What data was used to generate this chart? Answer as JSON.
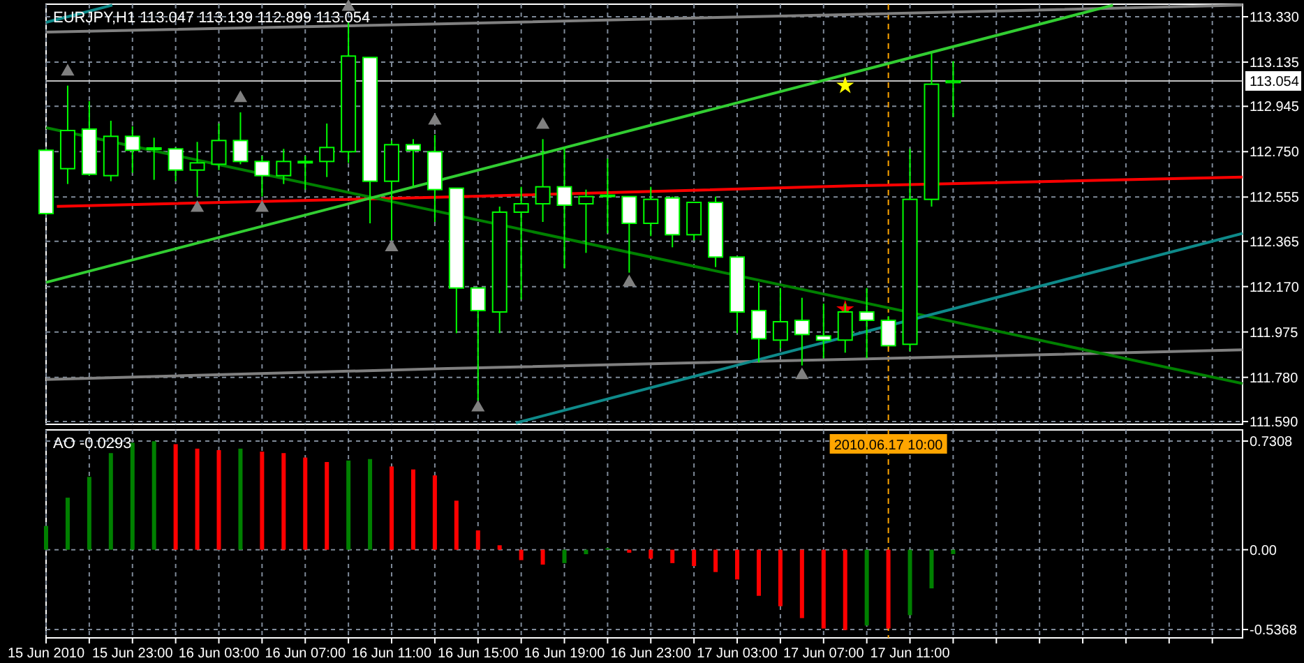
{
  "chart_data": [
    {
      "type": "candlestick",
      "title": "EURJPY,H1 113.047 113.139 112.899 113.054",
      "color": "#00ff00",
      "x": [
        "2010-06-15T19:00",
        "2010-06-15T20:00",
        "2010-06-15T21:00",
        "2010-06-15T22:00",
        "2010-06-15T23:00",
        "2010-06-16T00:00",
        "2010-06-16T01:00",
        "2010-06-16T02:00",
        "2010-06-16T03:00",
        "2010-06-16T04:00",
        "2010-06-16T05:00",
        "2010-06-16T06:00",
        "2010-06-16T07:00",
        "2010-06-16T08:00",
        "2010-06-16T09:00",
        "2010-06-16T10:00",
        "2010-06-16T11:00",
        "2010-06-16T12:00",
        "2010-06-16T13:00",
        "2010-06-16T14:00",
        "2010-06-16T15:00",
        "2010-06-16T16:00",
        "2010-06-16T17:00",
        "2010-06-16T18:00",
        "2010-06-16T19:00",
        "2010-06-16T20:00",
        "2010-06-16T21:00",
        "2010-06-16T22:00",
        "2010-06-16T23:00",
        "2010-06-17T00:00",
        "2010-06-17T01:00",
        "2010-06-17T02:00",
        "2010-06-17T03:00",
        "2010-06-17T04:00",
        "2010-06-17T05:00",
        "2010-06-17T06:00",
        "2010-06-17T07:00",
        "2010-06-17T08:00",
        "2010-06-17T09:00",
        "2010-06-17T10:00",
        "2010-06-17T11:00",
        "2010-06-17T12:00",
        "2010-06-17T13:00"
      ],
      "ohlc": [
        [
          112.756,
          112.762,
          112.478,
          112.484
        ],
        [
          112.677,
          113.034,
          112.611,
          112.841
        ],
        [
          112.847,
          112.967,
          112.647,
          112.653
        ],
        [
          112.647,
          112.883,
          112.623,
          112.816
        ],
        [
          112.816,
          112.859,
          112.659,
          112.756
        ],
        [
          112.766,
          112.81,
          112.629,
          112.762
        ],
        [
          112.762,
          112.768,
          112.623,
          112.671
        ],
        [
          112.671,
          112.792,
          112.557,
          112.702
        ],
        [
          112.696,
          112.871,
          112.671,
          112.798
        ],
        [
          112.798,
          112.919,
          112.696,
          112.708
        ],
        [
          112.708,
          112.732,
          112.557,
          112.647
        ],
        [
          112.647,
          112.762,
          112.611,
          112.708
        ],
        [
          112.708,
          112.732,
          112.587,
          112.708
        ],
        [
          112.708,
          112.871,
          112.641,
          112.768
        ],
        [
          112.75,
          113.306,
          112.702,
          113.161
        ],
        [
          113.155,
          113.155,
          112.442,
          112.623
        ],
        [
          112.623,
          112.798,
          112.369,
          112.78
        ],
        [
          112.78,
          112.804,
          112.599,
          112.756
        ],
        [
          112.75,
          112.822,
          112.448,
          112.587
        ],
        [
          112.593,
          112.593,
          111.97,
          112.164
        ],
        [
          112.164,
          112.164,
          111.68,
          112.067
        ],
        [
          112.061,
          112.514,
          111.97,
          112.49
        ],
        [
          112.49,
          112.599,
          112.115,
          112.526
        ],
        [
          112.526,
          112.804,
          112.448,
          112.599
        ],
        [
          112.599,
          112.768,
          112.248,
          112.52
        ],
        [
          112.526,
          112.587,
          112.315,
          112.557
        ],
        [
          112.56,
          112.72,
          112.399,
          112.563
        ],
        [
          112.557,
          112.557,
          112.23,
          112.442
        ],
        [
          112.442,
          112.599,
          112.387,
          112.545
        ],
        [
          112.551,
          112.557,
          112.339,
          112.393
        ],
        [
          112.393,
          112.532,
          112.369,
          112.532
        ],
        [
          112.532,
          112.557,
          112.254,
          112.297
        ],
        [
          112.297,
          112.297,
          111.97,
          112.061
        ],
        [
          112.067,
          112.188,
          111.844,
          111.946
        ],
        [
          111.94,
          112.164,
          111.904,
          112.019
        ],
        [
          112.025,
          112.122,
          111.831,
          111.964
        ],
        [
          111.958,
          112.097,
          111.862,
          111.94
        ],
        [
          111.94,
          112.097,
          111.886,
          112.061
        ],
        [
          112.061,
          112.164,
          111.862,
          112.025
        ],
        [
          112.025,
          112.043,
          111.916,
          111.916
        ],
        [
          111.922,
          112.762,
          111.892,
          112.545
        ],
        [
          112.545,
          113.173,
          112.514,
          113.04
        ],
        [
          113.047,
          113.139,
          112.899,
          113.054
        ]
      ],
      "series": [
        {
          "type": "line",
          "color": "#808080",
          "x": [
            "2010-06-15T19:00",
            "2010-06-16T13:36",
            "2010-06-17T08:18",
            "2010-06-18T02:24"
          ],
          "values": [
            113.264,
            113.3,
            113.34,
            113.38
          ]
        },
        {
          "type": "line",
          "color": "#808080",
          "x": [
            "2010-06-15T19:00",
            "2010-06-16T13:36",
            "2010-06-17T08:18",
            "2010-06-18T02:24"
          ],
          "values": [
            111.771,
            111.818,
            111.858,
            111.898
          ]
        },
        {
          "type": "line",
          "color": "#ff0000",
          "x": [
            "2010-06-15T19:30",
            "2010-06-16T13:36",
            "2010-06-17T08:18",
            "2010-06-18T02:24"
          ],
          "values": [
            112.515,
            112.555,
            112.603,
            112.641
          ]
        },
        {
          "type": "line",
          "color": "#008000",
          "x": [
            "2010-06-15T19:00",
            "2010-06-18T02:24"
          ],
          "values": [
            112.853,
            111.753
          ]
        },
        {
          "type": "line",
          "color": "#32cd32",
          "x": [
            "2010-06-15T19:00",
            "2010-06-17T20:24"
          ],
          "values": [
            112.188,
            113.38
          ]
        },
        {
          "type": "line",
          "color": "#0e8a8a",
          "x": [
            "2010-06-16T16:45",
            "2010-06-18T02:24"
          ],
          "values": [
            111.584,
            112.399
          ]
        },
        {
          "type": "line",
          "color": "#0e8a8a",
          "x": [
            "2010-06-15T19:00",
            "2010-06-15T22:04"
          ],
          "values": [
            113.306,
            113.38
          ]
        },
        {
          "type": "scatter",
          "color": "#808080",
          "marker": "triangle",
          "x": [
            "2010-06-15T20:00",
            "2010-06-16T04:00",
            "2010-06-16T09:00",
            "2010-06-16T13:00",
            "2010-06-16T18:00"
          ],
          "values": [
            113.094,
            112.98,
            113.372,
            112.883,
            112.865
          ]
        },
        {
          "type": "scatter",
          "color": "#808080",
          "marker": "triangle",
          "x": [
            "2010-06-16T02:00",
            "2010-06-16T05:00",
            "2010-06-16T11:00",
            "2010-06-16T15:00",
            "2010-06-16T22:00",
            "2010-06-17T06:00"
          ],
          "values": [
            112.508,
            112.508,
            112.339,
            111.65,
            112.188,
            111.789
          ]
        },
        {
          "type": "scatter",
          "color": "#ffff00",
          "marker": "star",
          "x": [
            "2010-06-17T08:00"
          ],
          "values": [
            113.034
          ]
        },
        {
          "type": "scatter",
          "color": "#ff0000",
          "marker": "star",
          "x": [
            "2010-06-17T08:00"
          ],
          "values": [
            112.073
          ]
        }
      ],
      "xlim": [
        "2010-06-15T19:00",
        "2010-06-18T02:24"
      ],
      "ylim": [
        111.578,
        113.384
      ],
      "xticks": [
        "2010-06-15T19:00",
        "2010-06-15T21:00",
        "2010-06-15T23:00",
        "2010-06-16T01:00",
        "2010-06-16T03:00",
        "2010-06-16T05:00",
        "2010-06-16T07:00",
        "2010-06-16T09:00",
        "2010-06-16T11:00",
        "2010-06-16T13:00",
        "2010-06-16T15:00",
        "2010-06-16T17:00",
        "2010-06-16T19:00",
        "2010-06-16T21:00",
        "2010-06-16T23:00",
        "2010-06-17T01:00",
        "2010-06-17T03:00",
        "2010-06-17T05:00",
        "2010-06-17T07:00",
        "2010-06-17T09:00",
        "2010-06-17T11:00",
        "2010-06-17T13:00",
        "2010-06-17T15:00",
        "2010-06-17T17:00",
        "2010-06-17T19:00",
        "2010-06-17T21:00",
        "2010-06-17T23:00",
        "2010-06-18T01:00"
      ],
      "yticks": [
        {
          "value": 113.33,
          "label": "113.330"
        },
        113.135,
        112.945,
        {
          "value": 112.75,
          "label": "112.750"
        },
        112.555,
        112.365,
        {
          "value": 112.17,
          "label": "112.170"
        },
        111.975,
        {
          "value": 111.78,
          "label": "111.780"
        },
        {
          "value": 111.59,
          "label": "111.590"
        }
      ],
      "ref_lines": [
        {
          "axis": "y",
          "value": 113.054,
          "label": "113.054",
          "color": "#c0c0c0"
        },
        {
          "axis": "x",
          "value": "2010-06-17T10:00",
          "label": null,
          "color": "#ffa500",
          "line_style": "dashed"
        }
      ],
      "grid": true,
      "tick_labels": "y"
    },
    {
      "type": "bar",
      "title": "AO -0.0293",
      "x": [
        "2010-06-15T19:00",
        "2010-06-15T20:00",
        "2010-06-15T21:00",
        "2010-06-15T22:00",
        "2010-06-15T23:00",
        "2010-06-16T00:00",
        "2010-06-16T01:00",
        "2010-06-16T02:00",
        "2010-06-16T03:00",
        "2010-06-16T04:00",
        "2010-06-16T05:00",
        "2010-06-16T06:00",
        "2010-06-16T07:00",
        "2010-06-16T08:00",
        "2010-06-16T09:00",
        "2010-06-16T10:00",
        "2010-06-16T11:00",
        "2010-06-16T12:00",
        "2010-06-16T13:00",
        "2010-06-16T14:00",
        "2010-06-16T15:00",
        "2010-06-16T16:00",
        "2010-06-16T17:00",
        "2010-06-16T18:00",
        "2010-06-16T19:00",
        "2010-06-16T20:00",
        "2010-06-16T21:00",
        "2010-06-16T22:00",
        "2010-06-16T23:00",
        "2010-06-17T00:00",
        "2010-06-17T01:00",
        "2010-06-17T02:00",
        "2010-06-17T03:00",
        "2010-06-17T04:00",
        "2010-06-17T05:00",
        "2010-06-17T06:00",
        "2010-06-17T07:00",
        "2010-06-17T08:00",
        "2010-06-17T09:00",
        "2010-06-17T10:00",
        "2010-06-17T11:00",
        "2010-06-17T12:00",
        "2010-06-17T13:00"
      ],
      "values": [
        0.16,
        0.35,
        0.49,
        0.65,
        0.72,
        0.73,
        0.71,
        0.68,
        0.67,
        0.68,
        0.66,
        0.65,
        0.62,
        0.59,
        0.6,
        0.61,
        0.56,
        0.54,
        0.5,
        0.33,
        0.13,
        0.03,
        -0.07,
        -0.1,
        -0.09,
        -0.03,
        0.01,
        -0.02,
        -0.06,
        -0.09,
        -0.11,
        -0.15,
        -0.2,
        -0.31,
        -0.38,
        -0.46,
        -0.53,
        -0.54,
        -0.51,
        -0.53,
        -0.44,
        -0.26,
        -0.0293
      ],
      "colors": [
        "#008000",
        "#008000",
        "#008000",
        "#008000",
        "#008000",
        "#008000",
        "#ff0000",
        "#ff0000",
        "#ff0000",
        "#008000",
        "#ff0000",
        "#ff0000",
        "#ff0000",
        "#ff0000",
        "#008000",
        "#008000",
        "#ff0000",
        "#ff0000",
        "#ff0000",
        "#ff0000",
        "#ff0000",
        "#ff0000",
        "#ff0000",
        "#ff0000",
        "#008000",
        "#008000",
        "#008000",
        "#ff0000",
        "#ff0000",
        "#ff0000",
        "#ff0000",
        "#ff0000",
        "#ff0000",
        "#ff0000",
        "#ff0000",
        "#ff0000",
        "#ff0000",
        "#ff0000",
        "#008000",
        "#ff0000",
        "#008000",
        "#008000",
        "#008000"
      ],
      "xlim": [
        "2010-06-15T19:00",
        "2010-06-18T02:24"
      ],
      "ylim": [
        -0.593,
        0.806
      ],
      "xticks": [
        {
          "value": "2010-06-15T19:00",
          "label": "15 Jun 2010"
        },
        {
          "value": "2010-06-15T21:00",
          "label": null
        },
        {
          "value": "2010-06-15T23:00",
          "label": "15 Jun 23:00"
        },
        {
          "value": "2010-06-16T01:00",
          "label": null
        },
        {
          "value": "2010-06-16T03:00",
          "label": "16 Jun 03:00"
        },
        {
          "value": "2010-06-16T05:00",
          "label": null
        },
        {
          "value": "2010-06-16T07:00",
          "label": "16 Jun 07:00"
        },
        {
          "value": "2010-06-16T09:00",
          "label": null
        },
        {
          "value": "2010-06-16T11:00",
          "label": "16 Jun 11:00"
        },
        {
          "value": "2010-06-16T13:00",
          "label": null
        },
        {
          "value": "2010-06-16T15:00",
          "label": "16 Jun 15:00"
        },
        {
          "value": "2010-06-16T17:00",
          "label": null
        },
        {
          "value": "2010-06-16T19:00",
          "label": "16 Jun 19:00"
        },
        {
          "value": "2010-06-16T21:00",
          "label": null
        },
        {
          "value": "2010-06-16T23:00",
          "label": "16 Jun 23:00"
        },
        {
          "value": "2010-06-17T01:00",
          "label": null
        },
        {
          "value": "2010-06-17T03:00",
          "label": "17 Jun 03:00"
        },
        {
          "value": "2010-06-17T05:00",
          "label": null
        },
        {
          "value": "2010-06-17T07:00",
          "label": "17 Jun 07:00"
        },
        {
          "value": "2010-06-17T09:00",
          "label": null
        },
        {
          "value": "2010-06-17T11:00",
          "label": "17 Jun 11:00"
        },
        {
          "value": "2010-06-17T13:00",
          "label": null
        },
        {
          "value": "2010-06-17T15:00",
          "label": null
        },
        {
          "value": "2010-06-17T17:00",
          "label": null
        },
        {
          "value": "2010-06-17T19:00",
          "label": null
        },
        {
          "value": "2010-06-17T21:00",
          "label": null
        },
        {
          "value": "2010-06-17T23:00",
          "label": null
        },
        {
          "value": "2010-06-18T01:00",
          "label": null
        }
      ],
      "yticks": [
        0.7308,
        {
          "value": 0,
          "label": "0.00"
        },
        -0.5368
      ],
      "ref_lines": [
        {
          "axis": "x",
          "value": "2010-06-17T10:00",
          "label": "2010.06.17 10:00",
          "color": "#ffa500",
          "line_style": "dashed"
        }
      ],
      "grid": true
    }
  ]
}
